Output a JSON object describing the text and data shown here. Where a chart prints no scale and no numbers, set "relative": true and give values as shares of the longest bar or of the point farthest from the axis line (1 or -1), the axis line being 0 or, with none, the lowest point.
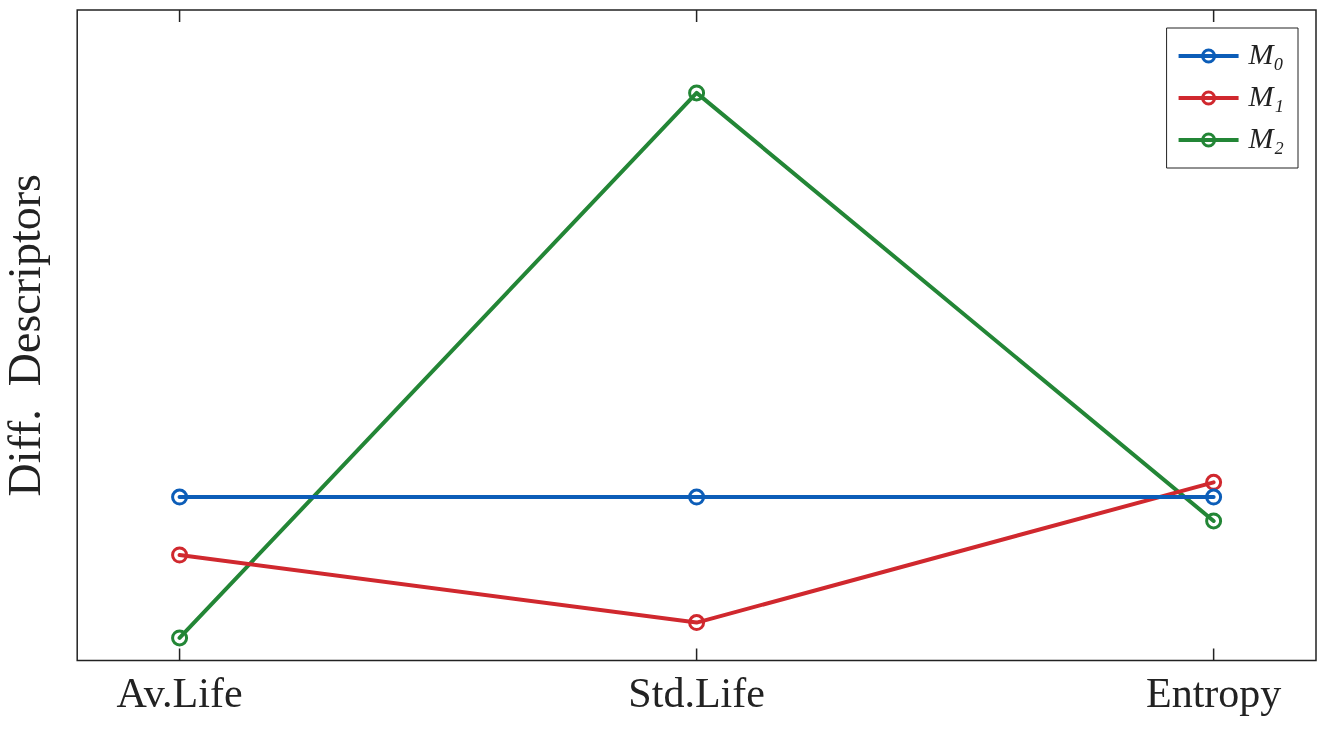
{
  "chart_data": {
    "type": "line",
    "ylabel": "Diff.  Descriptors",
    "categories": [
      "Av.Life",
      "Std.Life",
      "Entropy"
    ],
    "relative": true,
    "marker": "circle",
    "legend": "top right",
    "grid": false,
    "series": [
      {
        "name": "M₀",
        "color": "#0c5db8",
        "values": [
          0.288,
          0.288,
          0.288
        ]
      },
      {
        "name": "M₁",
        "color": "#d0282e",
        "values": [
          0.186,
          0.067,
          0.314
        ]
      },
      {
        "name": "M₂",
        "color": "#238636",
        "values": [
          0.04,
          1,
          0.246
        ]
      }
    ]
  }
}
